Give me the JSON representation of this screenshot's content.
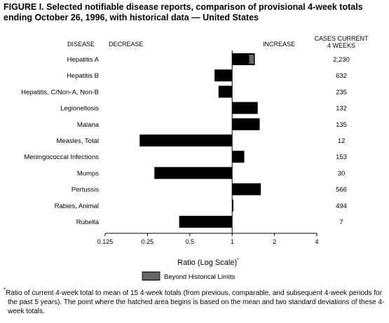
{
  "title": "FIGURE I. Selected notifiable disease reports, comparison of provisional 4-week totals ending October 26, 1996, with historical data — United States",
  "footnote_marker": "*",
  "footnote": "Ratio of current 4-week total to mean of 15 4-week totals (from previous, comparable, and subsequent 4-week periods for the past 5 years). The point where the hatched area begins is based on the mean and two standard deviations of these 4-week totals.",
  "chart_data": {
    "type": "bar",
    "orientation": "horizontal",
    "xscale": "log2",
    "xlim": [
      0.125,
      4
    ],
    "xticks": [
      "0.125",
      "0.25",
      "0.5",
      "1",
      "2",
      "4"
    ],
    "xlabel": "Ratio (Log Scale)",
    "xlabel_marker": "*",
    "header_disease": "DISEASE",
    "header_decrease": "DECREASE",
    "header_increase": "INCREASE",
    "header_cases": [
      "CASES CURRENT",
      "4 WEEKS"
    ],
    "legend_label": "Beyond Historical Limits",
    "categories": [
      "Hepatitis A",
      "Hepatitis B",
      "Hepatitis, C/Non-A, Non-B",
      "Legionellosis",
      "Malaria",
      "Measles, Total",
      "Meningococcal Infections",
      "Mumps",
      "Pertussis",
      "Rabies, Animal",
      "Rubella"
    ],
    "values": [
      1.45,
      0.75,
      0.8,
      1.52,
      1.57,
      0.22,
      1.22,
      0.28,
      1.6,
      1.02,
      0.42
    ],
    "beyond_limits_start": [
      1.32,
      null,
      null,
      null,
      null,
      null,
      null,
      null,
      null,
      null,
      null
    ],
    "cases": [
      "2,230",
      "632",
      "235",
      "132",
      "135",
      "12",
      "153",
      "30",
      "566",
      "494",
      "7"
    ],
    "colors": {
      "bar": "#000000"
    }
  }
}
